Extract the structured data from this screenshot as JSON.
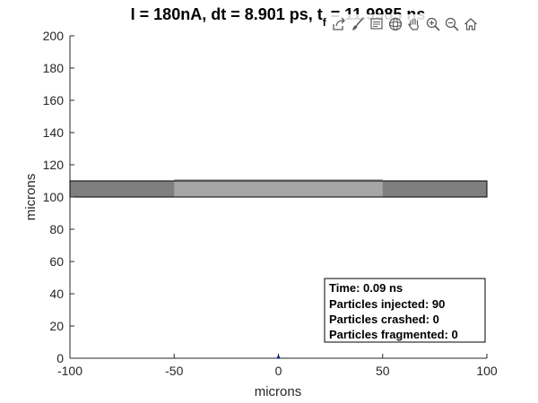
{
  "figure": {
    "title": "I = 180nA, dt = 8.901 ps, t_f = 11.9985 ns",
    "toolbar": [
      {
        "icon": "export-icon"
      },
      {
        "icon": "brush-icon"
      },
      {
        "icon": "datatip-icon"
      },
      {
        "icon": "rotate-3d-icon"
      },
      {
        "icon": "pan-hand-icon"
      },
      {
        "icon": "zoom-in-icon"
      },
      {
        "icon": "zoom-out-icon"
      },
      {
        "icon": "home-icon"
      }
    ]
  },
  "chart_data": {
    "type": "scatter",
    "title": "I = 180nA, dt = 8.901 ps, t_f = 11.9985 ns",
    "xlabel": "microns",
    "ylabel": "microns",
    "xlim": [
      -100,
      100
    ],
    "ylim": [
      0,
      200
    ],
    "x_ticks": [
      "-100",
      "-50",
      "0",
      "50",
      "100"
    ],
    "y_ticks": [
      "0",
      "20",
      "40",
      "60",
      "80",
      "100",
      "120",
      "140",
      "160",
      "180",
      "200"
    ],
    "grid": false,
    "electrodes": [
      {
        "x": [
          -100,
          100
        ],
        "y": [
          100,
          110
        ],
        "color": "#7f7f7f"
      },
      {
        "x": [
          -50,
          50
        ],
        "y": [
          100,
          111
        ],
        "color": "#a6a6a6"
      }
    ],
    "particles": {
      "color": "#1f3fbf",
      "points": [
        {
          "x": 0,
          "y": 0.5
        }
      ]
    },
    "info_box": {
      "time": "Time: 0.09 ns",
      "injected": "Particles injected: 90",
      "crashed": "Particles crashed: 0",
      "fragmented": "Particles fragmented: 0"
    }
  }
}
